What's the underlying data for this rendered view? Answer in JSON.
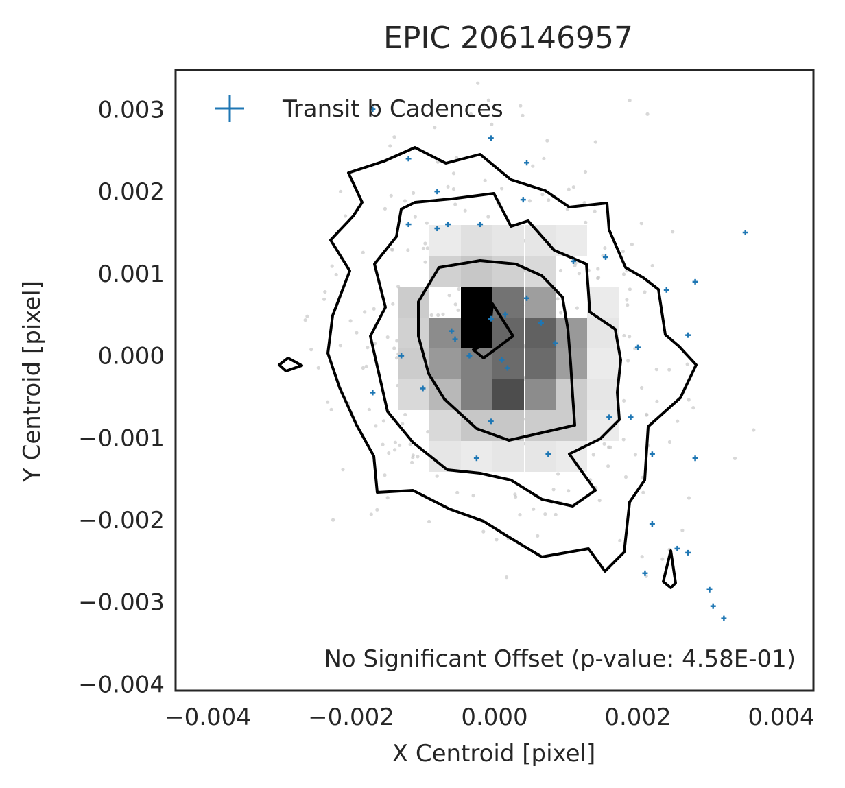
{
  "chart_data": {
    "type": "scatter",
    "title": "EPIC 206146957",
    "xlabel": "X Centroid [pixel]",
    "ylabel": "Y Centroid [pixel]",
    "xlim": [
      -0.00445,
      0.00445
    ],
    "ylim": [
      -0.00408,
      0.00348
    ],
    "x_ticks": [
      -0.004,
      -0.002,
      0.0,
      0.002,
      0.004
    ],
    "x_tick_labels": [
      "−0.004",
      "−0.002",
      "0.000",
      "0.002",
      "0.004"
    ],
    "y_ticks": [
      0.003,
      0.002,
      0.001,
      0.0,
      -0.001,
      -0.002,
      -0.003,
      -0.004
    ],
    "y_tick_labels": [
      "0.003",
      "0.002",
      "0.001",
      "0.000",
      "−0.001",
      "−0.002",
      "−0.003",
      "−0.004"
    ],
    "grid": false,
    "legend": {
      "placement": "top-left",
      "entries": [
        {
          "label": "Transit b Cadences",
          "marker": "+",
          "color": "#1f77b4"
        }
      ]
    },
    "annotation": "No Significant Offset (p-value: 4.58E-01)",
    "colors": {
      "transit": "#1f77b4",
      "background_points": "#c8c8c8",
      "contour": "#000000",
      "axes": "#262626"
    },
    "series": [
      {
        "name": "Transit b Cadences",
        "points": [
          [
            -0.0017,
            0.003
          ],
          [
            -0.0012,
            0.0024
          ],
          [
            -0.0008,
            0.002
          ],
          [
            -5e-05,
            0.00265
          ],
          [
            0.00045,
            0.00235
          ],
          [
            0.0004,
            0.0019
          ],
          [
            -0.0012,
            0.0016
          ],
          [
            -0.0008,
            0.00155
          ],
          [
            -0.00065,
            0.0016
          ],
          [
            -0.0002,
            0.0016
          ],
          [
            0.0035,
            0.0015
          ],
          [
            0.0011,
            0.00115
          ],
          [
            0.00155,
            0.0012
          ],
          [
            0.0024,
            0.0008
          ],
          [
            0.0028,
            0.0009
          ],
          [
            0.00045,
            0.0007
          ],
          [
            0.00015,
            0.0005
          ],
          [
            -5e-05,
            0.00045
          ],
          [
            0.00065,
            0.0004
          ],
          [
            -0.0006,
            0.0003
          ],
          [
            -0.00055,
            0.0002
          ],
          [
            0.00085,
            0.00015
          ],
          [
            0.002,
            0.0001
          ],
          [
            0.0027,
            0.00025
          ],
          [
            -0.0013,
            0.0
          ],
          [
            -0.00035,
            0.0
          ],
          [
            0.0001,
            -5e-05
          ],
          [
            0.00018,
            -0.00015
          ],
          [
            -0.0017,
            -0.00045
          ],
          [
            -0.001,
            -0.0004
          ],
          [
            -5e-05,
            -0.0008
          ],
          [
            0.0016,
            -0.00075
          ],
          [
            0.0019,
            -0.00075
          ],
          [
            -0.00025,
            -0.00125
          ],
          [
            0.00075,
            -0.0012
          ],
          [
            0.0022,
            -0.0012
          ],
          [
            0.0028,
            -0.00125
          ],
          [
            0.0022,
            -0.00205
          ],
          [
            0.00255,
            -0.00235
          ],
          [
            0.0027,
            -0.0024
          ],
          [
            0.0021,
            -0.00265
          ],
          [
            0.003,
            -0.00285
          ],
          [
            0.00305,
            -0.00305
          ],
          [
            0.0032,
            -0.0032
          ]
        ]
      }
    ]
  }
}
